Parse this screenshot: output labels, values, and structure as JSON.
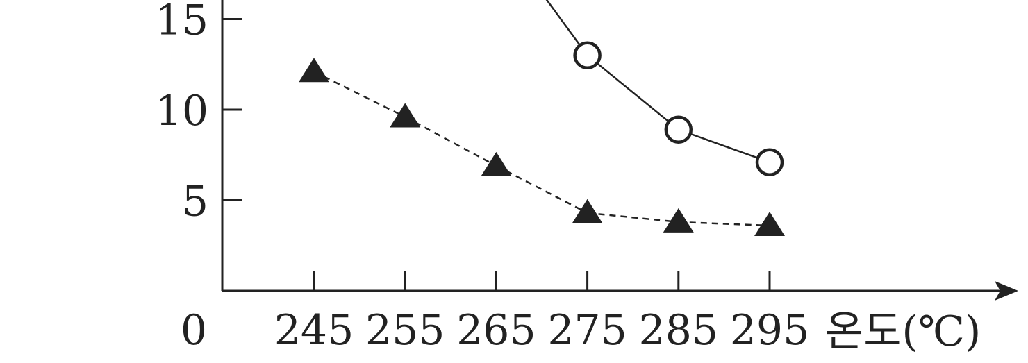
{
  "chart_data": {
    "type": "line",
    "title": "",
    "xlabel": "온도(℃)",
    "ylabel": "",
    "categories": [
      "245",
      "255",
      "265",
      "275",
      "285",
      "295"
    ],
    "x": [
      245,
      255,
      265,
      275,
      285,
      295
    ],
    "ylim": [
      0,
      16
    ],
    "origin_label": "0",
    "y_ticks": [
      {
        "value": 5,
        "label": "5"
      },
      {
        "value": 10,
        "label": "10"
      },
      {
        "value": 15,
        "label": "15"
      }
    ],
    "series": [
      {
        "marker": "open-circle",
        "line_style": "solid",
        "values": [
          null,
          null,
          null,
          13.0,
          8.9,
          7.1
        ],
        "continues_above_top": true
      },
      {
        "marker": "filled-triangle",
        "line_style": "dashed",
        "values": [
          12.1,
          9.6,
          6.9,
          4.3,
          3.8,
          3.6
        ]
      }
    ],
    "grid": false,
    "legend": "none",
    "colors": {
      "ink": "#222222",
      "marker_fill": "#ffffff"
    }
  }
}
